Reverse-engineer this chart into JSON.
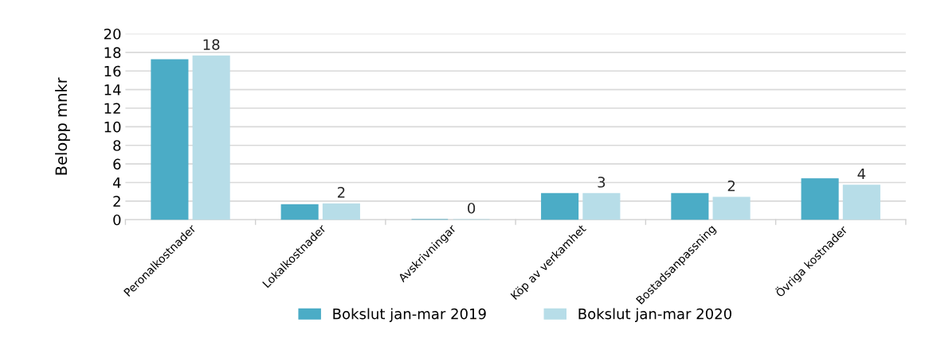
{
  "chart_data": {
    "type": "bar",
    "ylabel": "Belopp mnkr",
    "categories": [
      "Peronalkostnader",
      "Lokalkostnader",
      "Avskrivningar",
      "Köp av verkamhet",
      "Bostadsanpassning",
      "Övriga kostnader"
    ],
    "series": [
      {
        "name": "Bokslut jan-mar 2019",
        "color": "#4bacc6",
        "values": [
          17.2,
          1.6,
          0,
          2.8,
          2.8,
          4.4
        ]
      },
      {
        "name": "Bokslut jan-mar 2020",
        "color": "#b7dde8",
        "values": [
          17.6,
          1.7,
          0,
          2.8,
          2.4,
          3.7
        ],
        "value_labels": [
          "18",
          "2",
          "0",
          "3",
          "2",
          "4"
        ]
      }
    ],
    "ylim": [
      0,
      20
    ],
    "yticks": [
      0,
      2,
      4,
      6,
      8,
      10,
      12,
      14,
      16,
      18,
      20
    ],
    "grid": "y",
    "legend": "bottom"
  }
}
